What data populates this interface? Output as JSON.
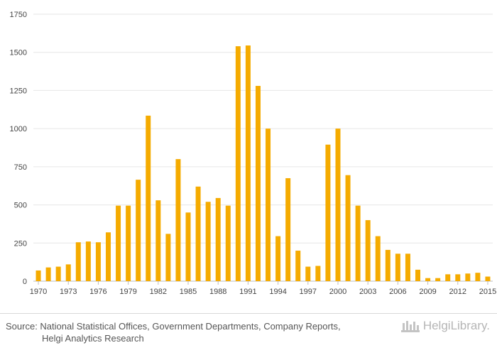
{
  "colors": {
    "bar": "#f5ab00",
    "grid": "#e6e6e6",
    "axis": "#bbbbbb"
  },
  "chart_data": {
    "type": "bar",
    "title": "",
    "xlabel": "",
    "ylabel": "",
    "ylim": [
      0,
      1750
    ],
    "yticks": [
      0,
      250,
      500,
      750,
      1000,
      1250,
      1500,
      1750
    ],
    "grid": true,
    "categories": [
      "1970",
      "1971",
      "1972",
      "1973",
      "1974",
      "1975",
      "1976",
      "1977",
      "1978",
      "1979",
      "1980",
      "1981",
      "1982",
      "1983",
      "1984",
      "1985",
      "1986",
      "1987",
      "1988",
      "1989",
      "1990",
      "1991",
      "1992",
      "1993",
      "1994",
      "1995",
      "1996",
      "1997",
      "1998",
      "1999",
      "2000",
      "2001",
      "2002",
      "2003",
      "2004",
      "2005",
      "2006",
      "2007",
      "2008",
      "2009",
      "2010",
      "2011",
      "2012",
      "2013",
      "2014",
      "2015"
    ],
    "xtick_labels": [
      "1970",
      "1973",
      "1976",
      "1979",
      "1982",
      "1985",
      "1988",
      "1991",
      "1994",
      "1997",
      "2000",
      "2003",
      "2006",
      "2009",
      "2012",
      "2015"
    ],
    "values": [
      70,
      90,
      95,
      110,
      255,
      260,
      255,
      320,
      495,
      495,
      665,
      1085,
      530,
      310,
      800,
      450,
      620,
      520,
      545,
      495,
      1540,
      1545,
      1280,
      1000,
      295,
      675,
      200,
      95,
      100,
      895,
      1000,
      695,
      495,
      400,
      295,
      205,
      180,
      180,
      75,
      20,
      20,
      45,
      45,
      50,
      55,
      30
    ]
  },
  "footer": {
    "source_line1": "Source: National Statistical Offices, Government Departments, Company Reports,",
    "source_line2": "Helgi Analytics Research",
    "logo_text": "HelgiLibrary."
  }
}
